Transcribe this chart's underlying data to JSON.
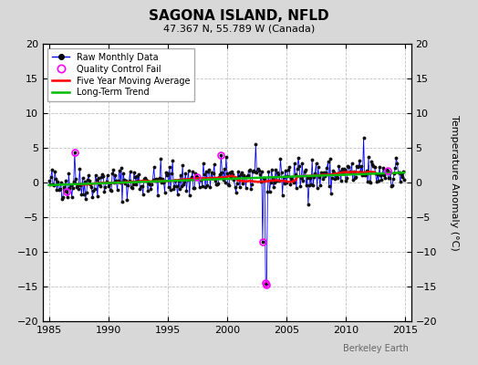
{
  "title": "SAGONA ISLAND, NFLD",
  "subtitle": "47.367 N, 55.789 W (Canada)",
  "ylabel": "Temperature Anomaly (°C)",
  "watermark": "Berkeley Earth",
  "xlim": [
    1984.5,
    2015.5
  ],
  "ylim": [
    -20,
    20
  ],
  "yticks": [
    -20,
    -15,
    -10,
    -5,
    0,
    5,
    10,
    15,
    20
  ],
  "xticks": [
    1985,
    1990,
    1995,
    2000,
    2005,
    2010,
    2015
  ],
  "bg_color": "#d8d8d8",
  "plot_bg_color": "#ffffff",
  "grid_color": "#c0c0c0",
  "raw_color": "#0000ff",
  "ma_color": "#ff0000",
  "trend_color": "#00bb00",
  "qc_color": "#ff00ff",
  "seed": 42,
  "title_fontsize": 11,
  "subtitle_fontsize": 8,
  "tick_fontsize": 8,
  "ylabel_fontsize": 8,
  "legend_fontsize": 7,
  "watermark_fontsize": 7
}
